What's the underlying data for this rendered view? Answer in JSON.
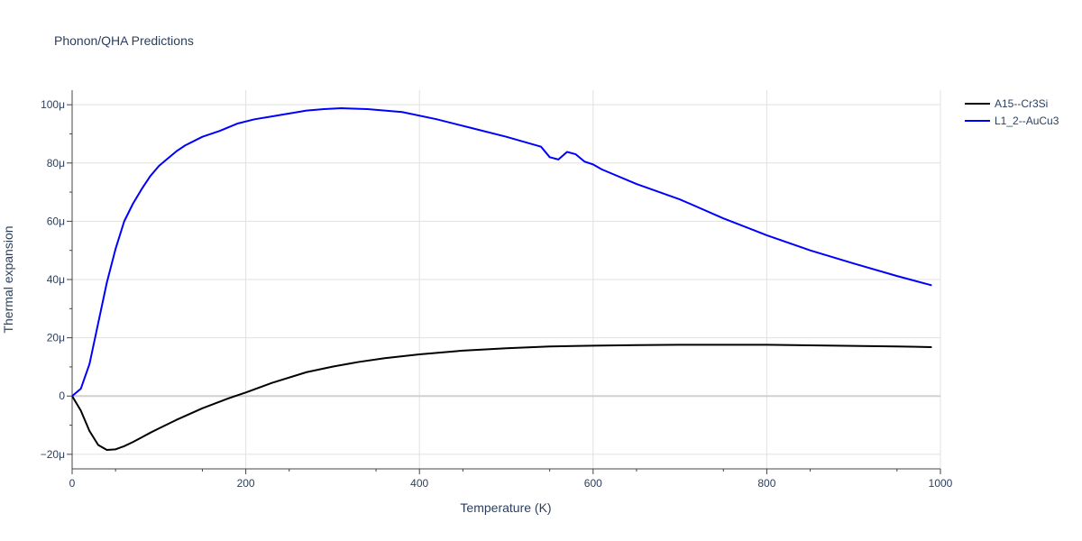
{
  "chart_data": {
    "type": "line",
    "title": "Phonon/QHA Predictions",
    "xlabel": "Temperature (K)",
    "ylabel": "Thermal expansion",
    "xlim": [
      0,
      1000
    ],
    "ylim": [
      -2.5e-05,
      0.000105
    ],
    "x_ticks": [
      0,
      200,
      400,
      600,
      800,
      1000
    ],
    "x_tick_labels": [
      "0",
      "200",
      "400",
      "600",
      "800",
      "1000"
    ],
    "y_ticks": [
      -2e-05,
      0,
      2e-05,
      4e-05,
      6e-05,
      8e-05,
      0.0001
    ],
    "y_tick_labels": [
      "−20μ",
      "0",
      "20μ",
      "40μ",
      "60μ",
      "80μ",
      "100μ"
    ],
    "grid": true,
    "legend_position": "top-right",
    "series": [
      {
        "name": "A15--Cr3Si",
        "color": "#000000",
        "x": [
          0,
          10,
          20,
          30,
          40,
          50,
          60,
          70,
          80,
          90,
          100,
          120,
          150,
          180,
          200,
          230,
          270,
          300,
          330,
          360,
          400,
          450,
          500,
          550,
          600,
          650,
          700,
          750,
          800,
          850,
          900,
          950,
          990
        ],
        "y": [
          0,
          -5e-06,
          -1.2e-05,
          -1.68e-05,
          -1.85e-05,
          -1.83e-05,
          -1.72e-05,
          -1.58e-05,
          -1.42e-05,
          -1.26e-05,
          -1.11e-05,
          -8.2e-06,
          -4.2e-06,
          -8e-07,
          1.2e-06,
          4.5e-06,
          8.2e-06,
          1.01e-05,
          1.17e-05,
          1.3e-05,
          1.43e-05,
          1.56e-05,
          1.64e-05,
          1.7e-05,
          1.73e-05,
          1.75e-05,
          1.76e-05,
          1.76e-05,
          1.76e-05,
          1.74e-05,
          1.72e-05,
          1.7e-05,
          1.68e-05
        ]
      },
      {
        "name": "L1_2--AuCu3",
        "color": "#0000ff",
        "x": [
          0,
          10,
          20,
          30,
          40,
          50,
          60,
          70,
          80,
          90,
          100,
          110,
          120,
          130,
          150,
          170,
          190,
          210,
          230,
          250,
          270,
          290,
          310,
          340,
          380,
          420,
          460,
          500,
          520,
          540,
          550,
          560,
          570,
          580,
          590,
          600,
          610,
          650,
          700,
          750,
          800,
          850,
          900,
          950,
          990
        ],
        "y": [
          0,
          2.5e-06,
          1.1e-05,
          2.5e-05,
          3.9e-05,
          5.05e-05,
          6e-05,
          6.6e-05,
          7.1e-05,
          7.55e-05,
          7.9e-05,
          8.15e-05,
          8.4e-05,
          8.6e-05,
          8.9e-05,
          9.1e-05,
          9.35e-05,
          9.5e-05,
          9.6e-05,
          9.7e-05,
          9.8e-05,
          9.85e-05,
          9.88e-05,
          9.85e-05,
          9.75e-05,
          9.5e-05,
          9.2e-05,
          8.9e-05,
          8.73e-05,
          8.56e-05,
          8.2e-05,
          8.12e-05,
          8.38e-05,
          8.3e-05,
          8.05e-05,
          7.95e-05,
          7.78e-05,
          7.28e-05,
          6.75e-05,
          6.1e-05,
          5.52e-05,
          5e-05,
          4.55e-05,
          4.12e-05,
          3.8e-05
        ]
      }
    ]
  }
}
